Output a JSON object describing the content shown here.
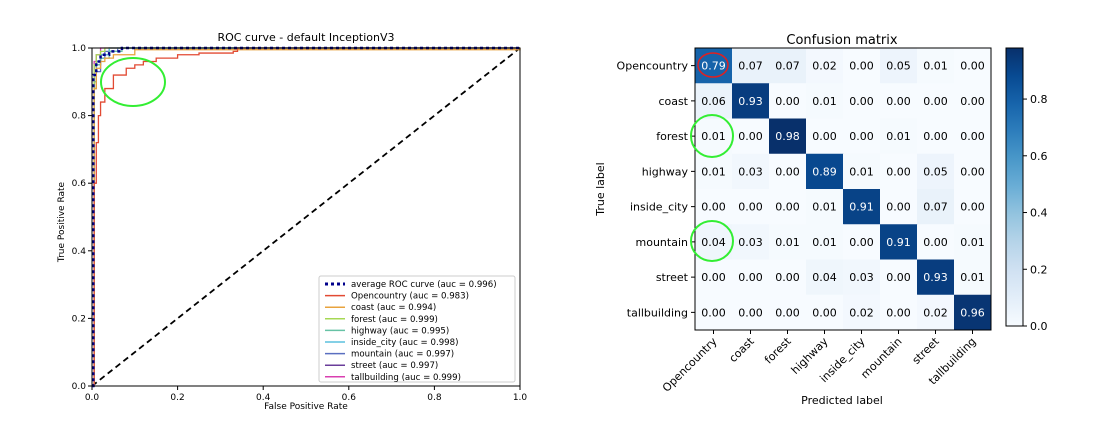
{
  "chart_data": [
    {
      "type": "line",
      "title": "ROC curve - default InceptionV3",
      "xlabel": "False Positive Rate",
      "ylabel": "True Positive Rate",
      "xlim": [
        0.0,
        1.0
      ],
      "ylim": [
        0.0,
        1.0
      ],
      "x_ticks": [
        "0.0",
        "0.2",
        "0.4",
        "0.6",
        "0.8",
        "1.0"
      ],
      "y_ticks": [
        "0.0",
        "0.2",
        "0.4",
        "0.6",
        "0.8",
        "1.0"
      ],
      "grid": false,
      "legend_position": "bottom-right",
      "diagonal_reference": true,
      "series": [
        {
          "name": "average ROC curve (auc = 0.996)",
          "color": "#00008b",
          "dashed": true,
          "x": [
            0,
            0.003,
            0.01,
            0.02,
            0.04,
            0.07,
            1.0
          ],
          "y": [
            0,
            0.92,
            0.96,
            0.98,
            0.99,
            1.0,
            1.0
          ]
        },
        {
          "name": "Opencountry (auc = 0.983)",
          "color": "#e24a33",
          "x": [
            0,
            0.005,
            0.01,
            0.015,
            0.02,
            0.03,
            0.05,
            0.08,
            0.1,
            0.12,
            0.15,
            0.2,
            0.25,
            0.33,
            0.34,
            1.0
          ],
          "y": [
            0,
            0.6,
            0.72,
            0.8,
            0.84,
            0.88,
            0.92,
            0.94,
            0.95,
            0.96,
            0.97,
            0.98,
            0.985,
            0.99,
            1.0,
            1.0
          ]
        },
        {
          "name": "coast (auc = 0.994)",
          "color": "#e8a33d",
          "x": [
            0,
            0.005,
            0.01,
            0.02,
            0.03,
            0.05,
            0.1,
            1.0
          ],
          "y": [
            0,
            0.88,
            0.94,
            0.96,
            0.97,
            0.98,
            0.995,
            1.0
          ]
        },
        {
          "name": "forest (auc = 0.999)",
          "color": "#a6d854",
          "x": [
            0,
            0.005,
            0.01,
            0.02,
            0.03,
            1.0
          ],
          "y": [
            0,
            0.95,
            0.98,
            0.99,
            1.0,
            1.0
          ]
        },
        {
          "name": "highway (auc = 0.995)",
          "color": "#66c2a5",
          "x": [
            0,
            0.005,
            0.01,
            0.02,
            0.04,
            0.07,
            1.0
          ],
          "y": [
            0,
            0.9,
            0.95,
            0.97,
            0.99,
            1.0,
            1.0
          ]
        },
        {
          "name": "inside_city (auc = 0.998)",
          "color": "#5bc0de",
          "x": [
            0,
            0.005,
            0.01,
            0.02,
            0.04,
            1.0
          ],
          "y": [
            0,
            0.92,
            0.96,
            0.98,
            1.0,
            1.0
          ]
        },
        {
          "name": "mountain (auc = 0.997)",
          "color": "#5a6fc0",
          "x": [
            0,
            0.005,
            0.01,
            0.02,
            0.03,
            0.06,
            1.0
          ],
          "y": [
            0,
            0.88,
            0.93,
            0.97,
            0.99,
            1.0,
            1.0
          ]
        },
        {
          "name": "street (auc = 0.997)",
          "color": "#6a3d9a",
          "x": [
            0,
            0.005,
            0.01,
            0.02,
            0.04,
            1.0
          ],
          "y": [
            0,
            0.9,
            0.95,
            0.98,
            1.0,
            1.0
          ]
        },
        {
          "name": "tallbuilding (auc = 0.999)",
          "color": "#d93fb0",
          "x": [
            0,
            0.005,
            0.01,
            0.02,
            1.0
          ],
          "y": [
            0,
            0.96,
            0.98,
            1.0,
            1.0
          ]
        }
      ]
    },
    {
      "type": "heatmap",
      "title": "Confusion matrix",
      "xlabel": "Predicted label",
      "ylabel": "True label",
      "categories": [
        "Opencountry",
        "coast",
        "forest",
        "highway",
        "inside_city",
        "mountain",
        "street",
        "tallbuilding"
      ],
      "values": [
        [
          "0.79",
          "0.07",
          "0.07",
          "0.02",
          "0.00",
          "0.05",
          "0.01",
          "0.00"
        ],
        [
          "0.06",
          "0.93",
          "0.00",
          "0.01",
          "0.00",
          "0.00",
          "0.00",
          "0.00"
        ],
        [
          "0.01",
          "0.00",
          "0.98",
          "0.00",
          "0.00",
          "0.01",
          "0.00",
          "0.00"
        ],
        [
          "0.01",
          "0.03",
          "0.00",
          "0.89",
          "0.01",
          "0.00",
          "0.05",
          "0.00"
        ],
        [
          "0.00",
          "0.00",
          "0.00",
          "0.01",
          "0.91",
          "0.00",
          "0.07",
          "0.00"
        ],
        [
          "0.04",
          "0.03",
          "0.01",
          "0.01",
          "0.00",
          "0.91",
          "0.00",
          "0.01"
        ],
        [
          "0.00",
          "0.00",
          "0.00",
          "0.04",
          "0.03",
          "0.00",
          "0.93",
          "0.01"
        ],
        [
          "0.00",
          "0.00",
          "0.00",
          "0.00",
          "0.02",
          "0.00",
          "0.02",
          "0.96"
        ]
      ],
      "colormap": "Blues",
      "color_range": [
        0.0,
        0.98
      ],
      "colorbar_ticks": [
        "0.0",
        "0.2",
        "0.4",
        "0.6",
        "0.8"
      ]
    }
  ],
  "annotations": {
    "green_circle_color": "#33ee33",
    "red_circle_color": "#e02020"
  }
}
